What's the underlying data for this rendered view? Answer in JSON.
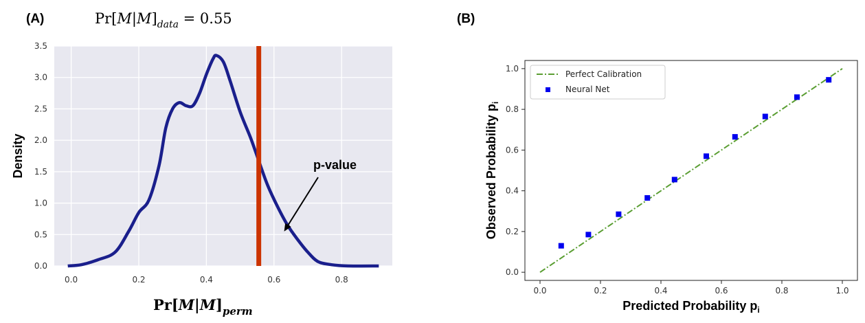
{
  "panels": {
    "a_label": "(A)",
    "b_label": "(B)"
  },
  "chart_data": [
    {
      "type": "line",
      "panel": "(A)",
      "title_parts": {
        "pre": "Pr[",
        "m1": "M",
        "bar": "|",
        "m2": "M",
        "post": "]",
        "sub": "data",
        "eq": " = 0.55"
      },
      "ylabel": "Density",
      "xlabel_parts": {
        "pre": "Pr[",
        "m1": "M",
        "bar": "|",
        "m2": "M",
        "post": "]",
        "sub": "perm"
      },
      "xlim": [
        -0.05,
        0.95
      ],
      "ylim": [
        0,
        3.5
      ],
      "xticks": [
        0.0,
        0.2,
        0.4,
        0.6,
        0.8
      ],
      "xtick_labels": [
        "0.0",
        "0.2",
        "0.4",
        "0.6",
        "0.8"
      ],
      "yticks": [
        0.0,
        0.5,
        1.0,
        1.5,
        2.0,
        2.5,
        3.0,
        3.5
      ],
      "ytick_labels": [
        "0.0",
        "0.5",
        "1.0",
        "1.5",
        "2.0",
        "2.5",
        "3.0",
        "3.5"
      ],
      "grid": true,
      "background": "#e8e8f0",
      "series": [
        {
          "color": "#1a1f8c",
          "x": [
            -0.01,
            0.03,
            0.08,
            0.13,
            0.17,
            0.2,
            0.23,
            0.26,
            0.28,
            0.3,
            0.32,
            0.34,
            0.36,
            0.38,
            0.4,
            0.42,
            0.43,
            0.45,
            0.47,
            0.5,
            0.53,
            0.55,
            0.58,
            0.61,
            0.64,
            0.67,
            0.7,
            0.73,
            0.77,
            0.82,
            0.91
          ],
          "y": [
            0.0,
            0.02,
            0.1,
            0.22,
            0.55,
            0.85,
            1.05,
            1.6,
            2.2,
            2.5,
            2.6,
            2.55,
            2.55,
            2.75,
            3.05,
            3.3,
            3.35,
            3.25,
            2.95,
            2.45,
            2.05,
            1.75,
            1.3,
            0.95,
            0.65,
            0.42,
            0.22,
            0.07,
            0.02,
            0.0,
            0.0
          ]
        }
      ],
      "vline": {
        "x": 0.555,
        "color": "#cc3300"
      },
      "annotation": {
        "text": "p-value",
        "arrow_to": [
          0.63,
          0.55
        ]
      }
    },
    {
      "type": "scatter",
      "panel": "(B)",
      "xlabel": "Predicted Probability",
      "xlabel_sub": "p",
      "xlabel_subscript": "i",
      "ylabel": "Observed Probability",
      "ylabel_sub": "p",
      "ylabel_subscript": "i",
      "xlim": [
        -0.05,
        1.05
      ],
      "ylim": [
        -0.04,
        1.04
      ],
      "xticks": [
        0.0,
        0.2,
        0.4,
        0.6,
        0.8,
        1.0
      ],
      "xtick_labels": [
        "0.0",
        "0.2",
        "0.4",
        "0.6",
        "0.8",
        "1.0"
      ],
      "yticks": [
        0.0,
        0.2,
        0.4,
        0.6,
        0.8,
        1.0
      ],
      "ytick_labels": [
        "0.0",
        "0.2",
        "0.4",
        "0.6",
        "0.8",
        "1.0"
      ],
      "grid": false,
      "legend": "upper left",
      "series": [
        {
          "name": "Perfect Calibration",
          "style": "dash-dot line",
          "color": "#5a9e32",
          "x": [
            0.0,
            1.0
          ],
          "y": [
            0.0,
            1.0
          ]
        },
        {
          "name": "Neural Net",
          "style": "square markers",
          "color": "#0000ee",
          "x": [
            0.07,
            0.16,
            0.26,
            0.355,
            0.445,
            0.55,
            0.645,
            0.745,
            0.85,
            0.955
          ],
          "y": [
            0.13,
            0.185,
            0.285,
            0.365,
            0.455,
            0.57,
            0.665,
            0.765,
            0.86,
            0.945
          ]
        }
      ]
    }
  ]
}
